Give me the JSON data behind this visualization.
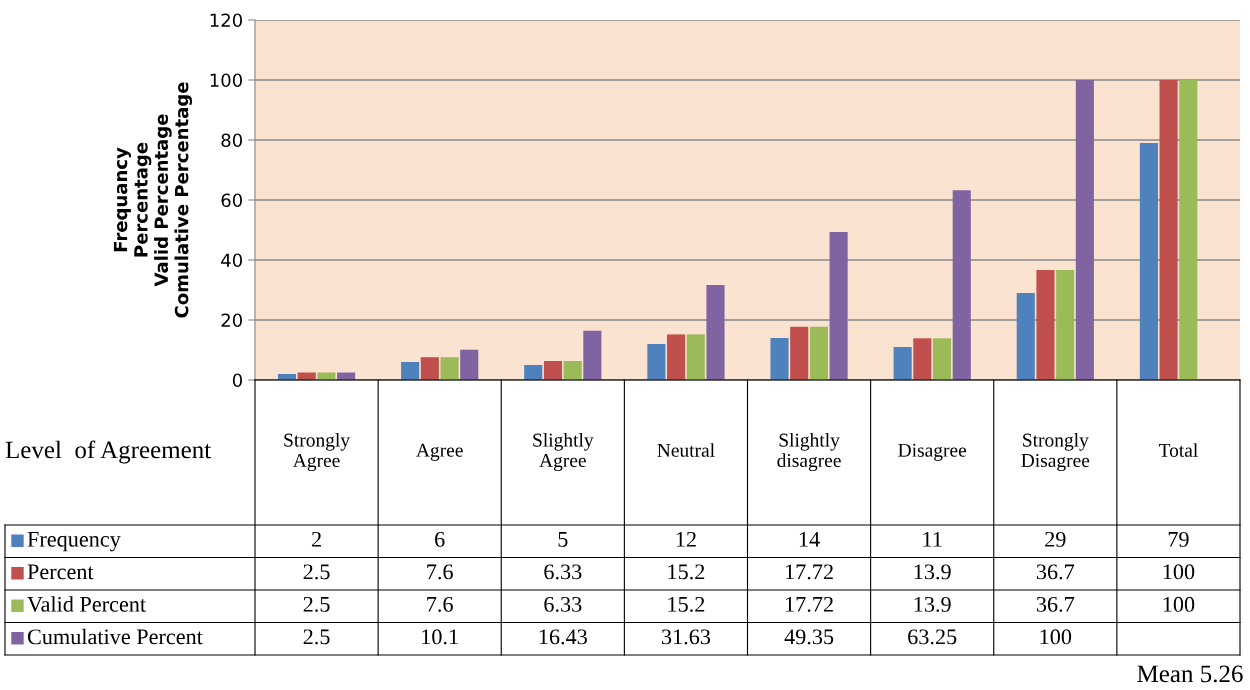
{
  "chart_data": {
    "type": "bar",
    "ylabel": "Frequancy\nPercentage\nValid Percentage\nComulative Percentage",
    "xlabel": "Level  of Agreement",
    "categories": [
      "Strongly Agree",
      "Agree",
      "Slightly Agree",
      "Neutral",
      "Slightly disagree",
      "Disagree",
      "Strongly Disagree",
      "Total"
    ],
    "series": [
      {
        "name": "Frequency",
        "color": "#4f81bd",
        "values": [
          2,
          6,
          5,
          12,
          14,
          11,
          29,
          79
        ],
        "value_labels": [
          "2",
          "6",
          "5",
          "12",
          "14",
          "11",
          "29",
          "79"
        ]
      },
      {
        "name": "Percent",
        "color": "#c0504d",
        "values": [
          2.5,
          7.6,
          6.33,
          15.2,
          17.72,
          13.9,
          36.7,
          100
        ],
        "value_labels": [
          "2.5",
          "7.6",
          "6.33",
          "15.2",
          "17.72",
          "13.9",
          "36.7",
          "100"
        ]
      },
      {
        "name": "Valid Percent",
        "color": "#9bbb59",
        "values": [
          2.5,
          7.6,
          6.33,
          15.2,
          17.72,
          13.9,
          36.7,
          100
        ],
        "value_labels": [
          "2.5",
          "7.6",
          "6.33",
          "15.2",
          "17.72",
          "13.9",
          "36.7",
          "100"
        ]
      },
      {
        "name": "Cumulative Percent",
        "color": "#8064a2",
        "values": [
          2.5,
          10.1,
          16.43,
          31.63,
          49.35,
          63.25,
          100,
          null
        ],
        "value_labels": [
          "2.5",
          "10.1",
          "16.43",
          "31.63",
          "49.35",
          "63.25",
          "100",
          null
        ]
      }
    ],
    "ylim": [
      0,
      120
    ],
    "yticks": [
      0,
      20,
      40,
      60,
      80,
      100,
      120
    ],
    "grid": "y",
    "legend": "left",
    "annotations": [
      "Mean 5.26"
    ]
  }
}
